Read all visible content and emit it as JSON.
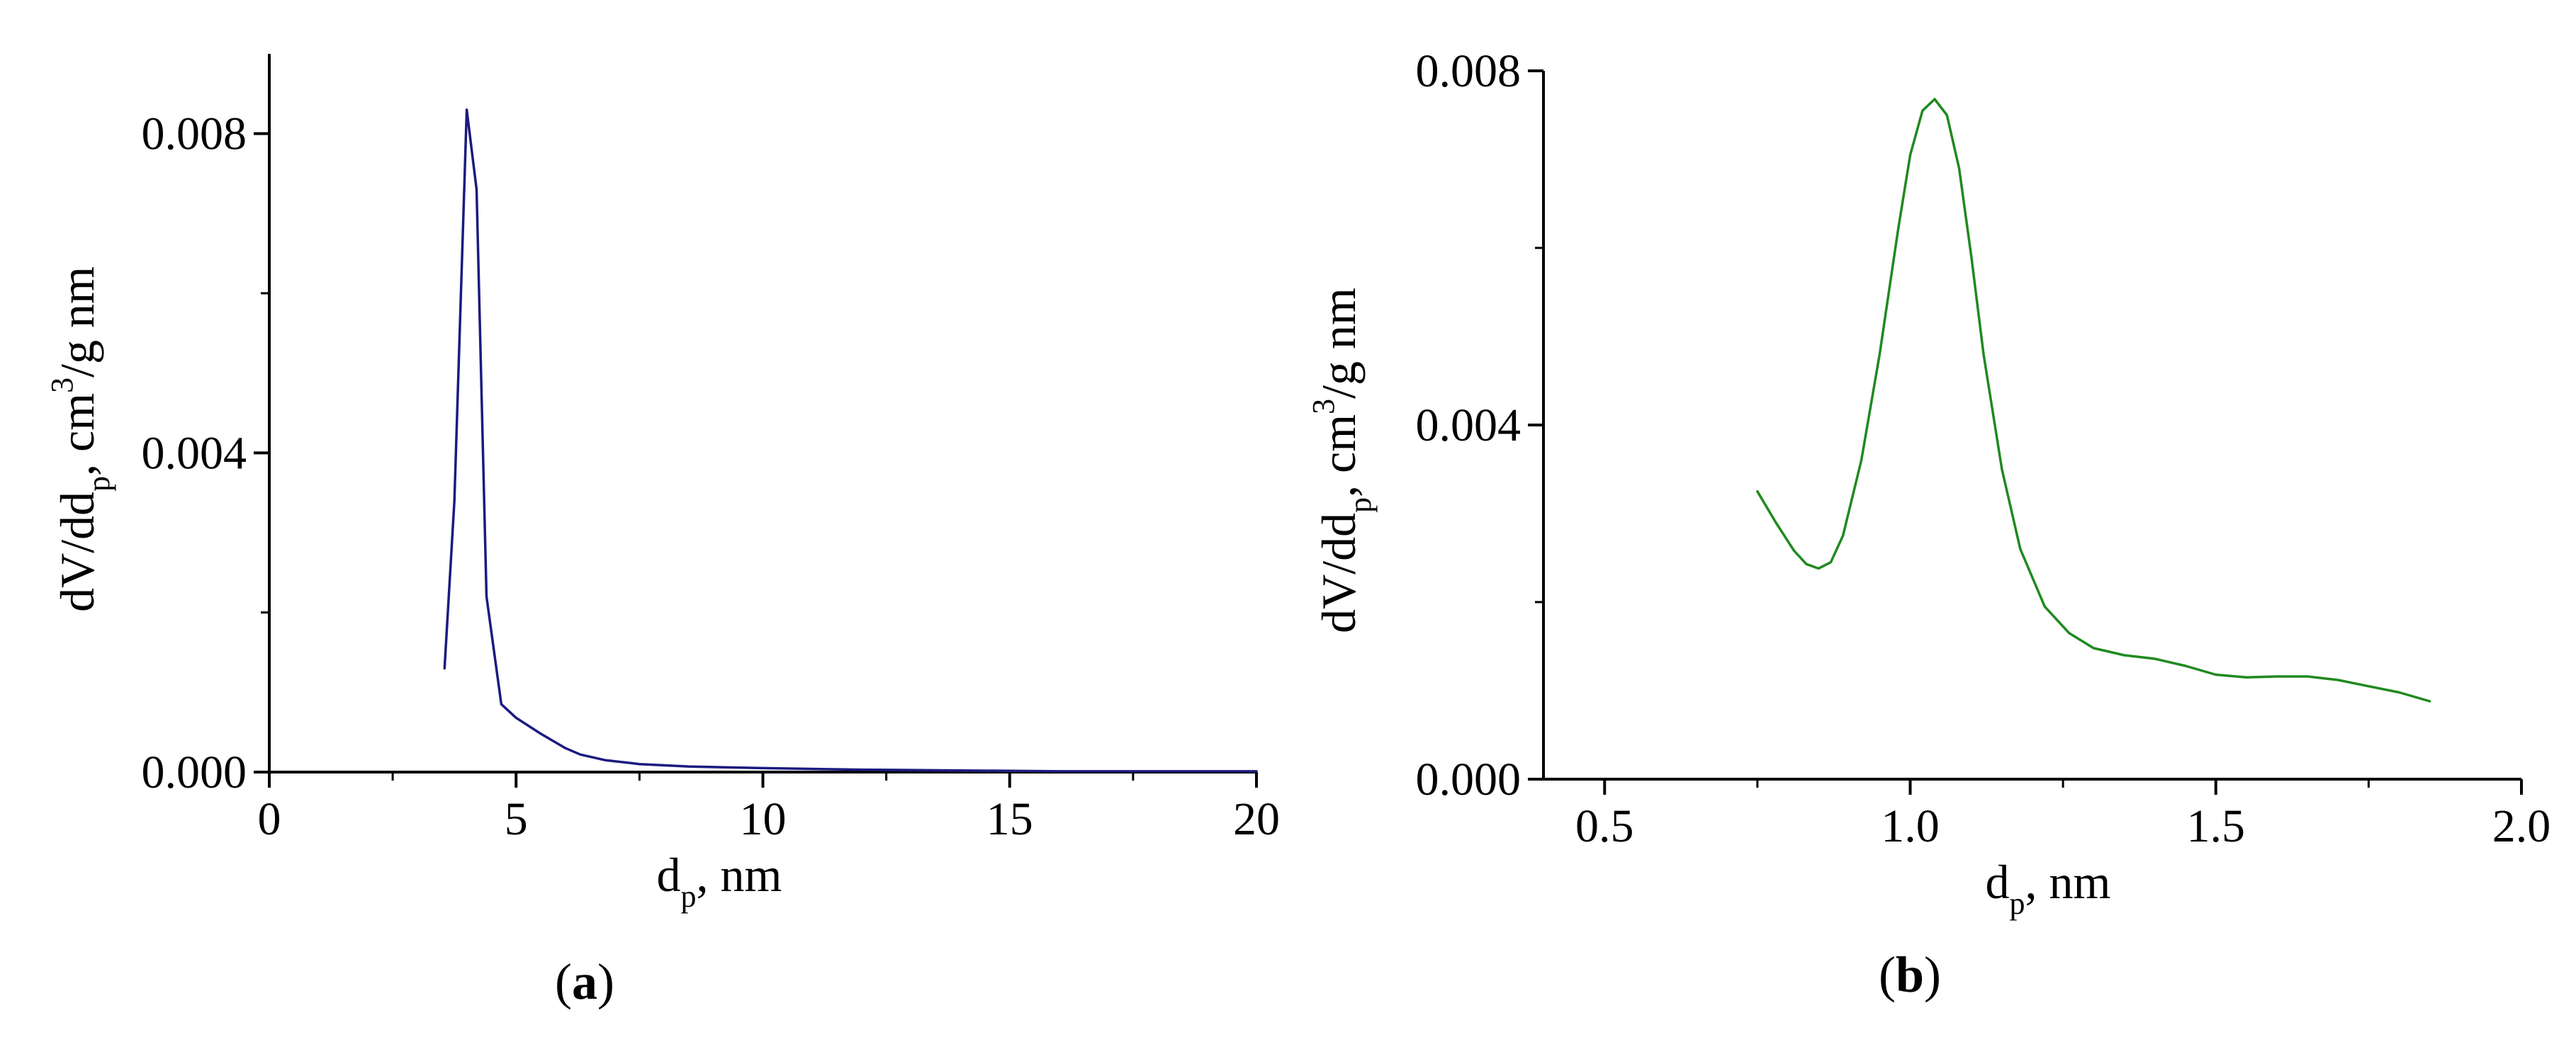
{
  "colors": {
    "panel_a_line": "#1b1b80",
    "panel_b_line": "#1f8a1f",
    "axis": "#000000"
  },
  "chart_data": [
    {
      "type": "line",
      "panel_label": "a",
      "xlabel": "dp, nm",
      "ylabel": "dV/ddp, cm3/g nm",
      "xlabel_parts": {
        "main": "d",
        "sub": "p",
        "rest": ", nm"
      },
      "ylabel_parts": {
        "main": "dV/dd",
        "sub": "p",
        "mid": ", cm",
        "sup": "3",
        "rest": "/g nm"
      },
      "xlim": [
        0,
        20
      ],
      "ylim": [
        0,
        0.009
      ],
      "x_ticks": [
        0,
        5,
        10,
        15,
        20
      ],
      "x_tick_labels": [
        "0",
        "5",
        "10",
        "15",
        "20"
      ],
      "y_ticks": [
        0.0,
        0.004,
        0.008
      ],
      "y_tick_labels": [
        "0.000",
        "0.004",
        "0.008"
      ],
      "grid": false,
      "legend": "none",
      "series": [
        {
          "color": "#1b1b80",
          "x": [
            3.55,
            3.75,
            4.0,
            4.2,
            4.4,
            4.7,
            5.0,
            5.5,
            6.0,
            6.3,
            6.8,
            7.5,
            8.5,
            10.0,
            12.0,
            14.0,
            16.0,
            18.0,
            20.0
          ],
          "y": [
            0.0013,
            0.0034,
            0.0083,
            0.0073,
            0.0022,
            0.00085,
            0.00068,
            0.00048,
            0.0003,
            0.00022,
            0.00015,
            0.0001,
            7e-05,
            5e-05,
            3e-05,
            2e-05,
            1e-05,
            1e-05,
            1e-05
          ]
        }
      ]
    },
    {
      "type": "line",
      "panel_label": "b",
      "xlabel": "dp, nm",
      "ylabel": "dV/ddp, cm3/g nm",
      "xlabel_parts": {
        "main": "d",
        "sub": "p",
        "rest": ", nm"
      },
      "ylabel_parts": {
        "main": "dV/dd",
        "sub": "p",
        "mid": ", cm",
        "sup": "3",
        "rest": "/g nm"
      },
      "xlim": [
        0.4,
        2.0
      ],
      "ylim": [
        0,
        0.008
      ],
      "x_ticks": [
        0.5,
        1.0,
        1.5,
        2.0
      ],
      "x_tick_labels": [
        "0.5",
        "1.0",
        "1.5",
        "2.0"
      ],
      "y_ticks": [
        0.0,
        0.004,
        0.008
      ],
      "y_tick_labels": [
        "0.000",
        "0.004",
        "0.008"
      ],
      "grid": false,
      "legend": "none",
      "series": [
        {
          "color": "#1f8a1f",
          "x": [
            0.75,
            0.78,
            0.81,
            0.83,
            0.85,
            0.87,
            0.89,
            0.92,
            0.95,
            0.98,
            1.0,
            1.02,
            1.04,
            1.06,
            1.08,
            1.1,
            1.12,
            1.15,
            1.18,
            1.22,
            1.26,
            1.3,
            1.35,
            1.4,
            1.45,
            1.5,
            1.55,
            1.6,
            1.65,
            1.7,
            1.75,
            1.8,
            1.85
          ],
          "y": [
            0.00325,
            0.0029,
            0.00258,
            0.00243,
            0.00238,
            0.00245,
            0.00275,
            0.0036,
            0.0048,
            0.0062,
            0.00705,
            0.00755,
            0.00768,
            0.0075,
            0.0069,
            0.0059,
            0.0048,
            0.0035,
            0.0026,
            0.00195,
            0.00165,
            0.00148,
            0.0014,
            0.00136,
            0.00128,
            0.00118,
            0.00115,
            0.00116,
            0.00116,
            0.00112,
            0.00105,
            0.00098,
            0.00088
          ]
        }
      ]
    }
  ]
}
